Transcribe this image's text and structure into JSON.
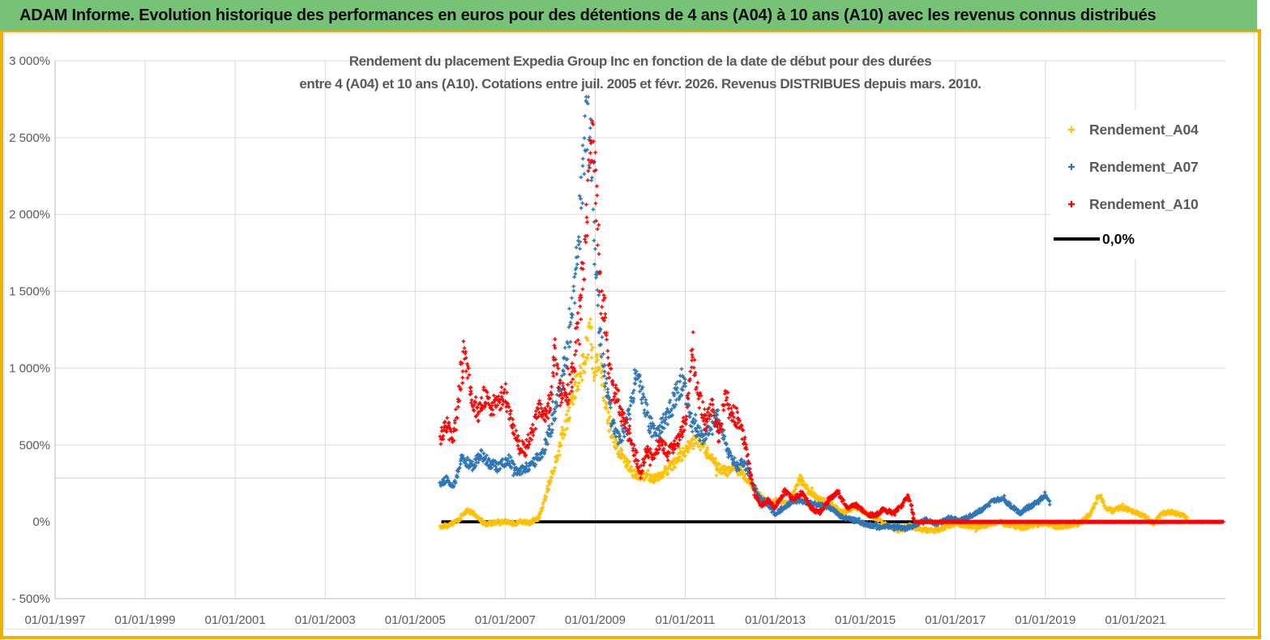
{
  "banner": {
    "title": "ADAM Informe. Evolution historique des performances en euros pour des détentions de 4 ans (A04) à 10 ans (A10) avec les revenus connus distribués",
    "bg_color": "#76C276"
  },
  "colors": {
    "gold_border": "#EFB000",
    "series_a04": "#FFC000",
    "series_a07": "#2E75B6",
    "series_a10": "#FF0000",
    "zero_line": "#000000",
    "gridline": "#DADADA",
    "axis_line": "#C6C6C6",
    "text_gray": "#595959"
  },
  "chart_data": {
    "type": "scatter",
    "title_lines": [
      "Rendement du placement Expedia Group Inc en fonction de la date de début pour des durées",
      "entre 4 (A04) et 10 ans (A10). Cotations entre juil. 2005 et févr. 2026. Revenus DISTRIBUES depuis mars. 2010."
    ],
    "x_axis": {
      "tick_labels": [
        "01/01/1997",
        "01/01/1999",
        "01/01/2001",
        "01/01/2003",
        "01/01/2005",
        "01/01/2007",
        "01/01/2009",
        "01/01/2011",
        "01/01/2013",
        "01/01/2015",
        "01/01/2017",
        "01/01/2019",
        "01/01/2021"
      ],
      "range_years": [
        1997,
        2023
      ],
      "grid_interval_years": 2
    },
    "y_axis": {
      "tick_labels": [
        "3 000%",
        "2 500%",
        "2 000%",
        "1 500%",
        "1 000%",
        "500%",
        "0%",
        "- 500%"
      ],
      "tick_values": [
        3000,
        2500,
        2000,
        1500,
        1000,
        500,
        0,
        -500
      ],
      "min": -500,
      "max": 3000,
      "unit": "%",
      "extra_axis_line_value": 285
    },
    "legend": {
      "position": "right-top-overlapping-plot",
      "items": [
        {
          "label": "Rendement_A04",
          "color": "#FFC000",
          "marker": "plus"
        },
        {
          "label": "Rendement_A07",
          "color": "#2E75B6",
          "marker": "plus"
        },
        {
          "label": "Rendement_A10",
          "color": "#FF0000",
          "marker": "plus"
        },
        {
          "label": "0,0%",
          "color": "#000000",
          "marker": "line"
        }
      ]
    },
    "zero_line": {
      "value": 0,
      "from_year": 2005.58,
      "to_year": 2022.96,
      "color": "#000000"
    },
    "series": [
      {
        "name": "Rendement_A04",
        "color": "#FFC000",
        "anchors": [
          [
            2005.55,
            -30
          ],
          [
            2005.75,
            -25
          ],
          [
            2005.95,
            10
          ],
          [
            2006.15,
            75
          ],
          [
            2006.35,
            45
          ],
          [
            2006.55,
            -15
          ],
          [
            2006.75,
            -5
          ],
          [
            2006.95,
            5
          ],
          [
            2007.15,
            -10
          ],
          [
            2007.35,
            0
          ],
          [
            2007.55,
            -5
          ],
          [
            2007.75,
            25
          ],
          [
            2007.95,
            220
          ],
          [
            2008.15,
            420
          ],
          [
            2008.35,
            640
          ],
          [
            2008.55,
            850
          ],
          [
            2008.75,
            1050
          ],
          [
            2008.9,
            1230
          ],
          [
            2009.0,
            950
          ],
          [
            2009.1,
            1080
          ],
          [
            2009.25,
            720
          ],
          [
            2009.4,
            540
          ],
          [
            2009.55,
            450
          ],
          [
            2009.7,
            390
          ],
          [
            2009.85,
            310
          ],
          [
            2010.0,
            300
          ],
          [
            2010.3,
            280
          ],
          [
            2010.6,
            330
          ],
          [
            2010.9,
            430
          ],
          [
            2011.1,
            500
          ],
          [
            2011.3,
            530
          ],
          [
            2011.5,
            440
          ],
          [
            2011.7,
            370
          ],
          [
            2011.9,
            320
          ],
          [
            2012.1,
            360
          ],
          [
            2012.3,
            300
          ],
          [
            2012.5,
            230
          ],
          [
            2012.7,
            160
          ],
          [
            2012.9,
            120
          ],
          [
            2013.1,
            140
          ],
          [
            2013.3,
            120
          ],
          [
            2013.55,
            280
          ],
          [
            2013.75,
            200
          ],
          [
            2013.95,
            150
          ],
          [
            2014.25,
            115
          ],
          [
            2014.5,
            60
          ],
          [
            2014.75,
            95
          ],
          [
            2015.0,
            60
          ],
          [
            2015.25,
            20
          ],
          [
            2015.5,
            -30
          ],
          [
            2015.75,
            -55
          ],
          [
            2016.0,
            -25
          ],
          [
            2016.25,
            -50
          ],
          [
            2016.5,
            -60
          ],
          [
            2016.75,
            -40
          ],
          [
            2017.0,
            -10
          ],
          [
            2017.25,
            -25
          ],
          [
            2017.5,
            -35
          ],
          [
            2017.75,
            -15
          ],
          [
            2018.0,
            -5
          ],
          [
            2018.25,
            -25
          ],
          [
            2018.5,
            -40
          ],
          [
            2018.75,
            -20
          ],
          [
            2019.0,
            -10
          ],
          [
            2019.25,
            -30
          ],
          [
            2019.5,
            -25
          ],
          [
            2019.75,
            -15
          ],
          [
            2020.0,
            50
          ],
          [
            2020.2,
            180
          ],
          [
            2020.35,
            90
          ],
          [
            2020.5,
            70
          ],
          [
            2020.65,
            95
          ],
          [
            2020.8,
            85
          ],
          [
            2021.0,
            60
          ],
          [
            2021.2,
            35
          ],
          [
            2021.4,
            -10
          ],
          [
            2021.6,
            55
          ],
          [
            2021.8,
            65
          ],
          [
            2022.0,
            45
          ],
          [
            2022.15,
            30
          ]
        ]
      },
      {
        "name": "Rendement_A07",
        "color": "#2E75B6",
        "anchors": [
          [
            2005.55,
            250
          ],
          [
            2005.7,
            280
          ],
          [
            2005.85,
            230
          ],
          [
            2006.05,
            420
          ],
          [
            2006.25,
            360
          ],
          [
            2006.45,
            440
          ],
          [
            2006.65,
            380
          ],
          [
            2006.85,
            355
          ],
          [
            2007.05,
            410
          ],
          [
            2007.25,
            330
          ],
          [
            2007.45,
            350
          ],
          [
            2007.65,
            390
          ],
          [
            2007.85,
            470
          ],
          [
            2008.05,
            650
          ],
          [
            2008.25,
            900
          ],
          [
            2008.45,
            1250
          ],
          [
            2008.65,
            1900
          ],
          [
            2008.8,
            2750
          ],
          [
            2008.9,
            2400
          ],
          [
            2009.0,
            1700
          ],
          [
            2009.1,
            1250
          ],
          [
            2009.25,
            860
          ],
          [
            2009.4,
            620
          ],
          [
            2009.55,
            540
          ],
          [
            2009.7,
            640
          ],
          [
            2009.9,
            960
          ],
          [
            2010.05,
            830
          ],
          [
            2010.2,
            640
          ],
          [
            2010.35,
            560
          ],
          [
            2010.5,
            640
          ],
          [
            2010.65,
            720
          ],
          [
            2010.8,
            830
          ],
          [
            2010.95,
            930
          ],
          [
            2011.1,
            680
          ],
          [
            2011.25,
            590
          ],
          [
            2011.4,
            540
          ],
          [
            2011.55,
            620
          ],
          [
            2011.7,
            700
          ],
          [
            2011.85,
            560
          ],
          [
            2012.0,
            420
          ],
          [
            2012.15,
            360
          ],
          [
            2012.3,
            390
          ],
          [
            2012.45,
            290
          ],
          [
            2012.6,
            180
          ],
          [
            2012.8,
            120
          ],
          [
            2013.0,
            50
          ],
          [
            2013.2,
            90
          ],
          [
            2013.4,
            140
          ],
          [
            2013.6,
            135
          ],
          [
            2013.8,
            120
          ],
          [
            2014.0,
            110
          ],
          [
            2014.2,
            95
          ],
          [
            2014.5,
            30
          ],
          [
            2014.75,
            10
          ],
          [
            2015.0,
            -15
          ],
          [
            2015.3,
            -35
          ],
          [
            2015.6,
            -25
          ],
          [
            2015.9,
            -45
          ],
          [
            2016.1,
            -20
          ],
          [
            2016.35,
            15
          ],
          [
            2016.6,
            -15
          ],
          [
            2016.85,
            25
          ],
          [
            2017.1,
            5
          ],
          [
            2017.35,
            40
          ],
          [
            2017.6,
            80
          ],
          [
            2017.85,
            140
          ],
          [
            2018.05,
            150
          ],
          [
            2018.25,
            100
          ],
          [
            2018.45,
            60
          ],
          [
            2018.65,
            100
          ],
          [
            2018.85,
            130
          ],
          [
            2019.0,
            180
          ],
          [
            2019.1,
            110
          ]
        ]
      },
      {
        "name": "Rendement_A10",
        "color": "#FF0000",
        "flat_zero_tail": {
          "from_year": 2016.1,
          "to_year": 2022.96
        },
        "anchors": [
          [
            2005.55,
            550
          ],
          [
            2005.7,
            630
          ],
          [
            2005.85,
            520
          ],
          [
            2006.0,
            900
          ],
          [
            2006.1,
            1130
          ],
          [
            2006.25,
            820
          ],
          [
            2006.4,
            700
          ],
          [
            2006.55,
            830
          ],
          [
            2006.7,
            740
          ],
          [
            2006.85,
            790
          ],
          [
            2007.0,
            830
          ],
          [
            2007.15,
            640
          ],
          [
            2007.3,
            500
          ],
          [
            2007.45,
            470
          ],
          [
            2007.6,
            590
          ],
          [
            2007.75,
            740
          ],
          [
            2007.9,
            690
          ],
          [
            2008.0,
            800
          ],
          [
            2008.1,
            1150
          ],
          [
            2008.2,
            880
          ],
          [
            2008.35,
            790
          ],
          [
            2008.5,
            960
          ],
          [
            2008.65,
            1350
          ],
          [
            2008.8,
            1850
          ],
          [
            2008.92,
            2530
          ],
          [
            2009.02,
            2150
          ],
          [
            2009.12,
            1500
          ],
          [
            2009.22,
            1320
          ],
          [
            2009.32,
            950
          ],
          [
            2009.45,
            840
          ],
          [
            2009.6,
            700
          ],
          [
            2009.75,
            560
          ],
          [
            2009.9,
            430
          ],
          [
            2010.0,
            310
          ],
          [
            2010.15,
            470
          ],
          [
            2010.3,
            420
          ],
          [
            2010.45,
            520
          ],
          [
            2010.6,
            450
          ],
          [
            2010.75,
            490
          ],
          [
            2010.9,
            560
          ],
          [
            2011.0,
            650
          ],
          [
            2011.15,
            1100
          ],
          [
            2011.3,
            820
          ],
          [
            2011.45,
            650
          ],
          [
            2011.6,
            750
          ],
          [
            2011.75,
            550
          ],
          [
            2011.9,
            860
          ],
          [
            2012.05,
            700
          ],
          [
            2012.2,
            650
          ],
          [
            2012.35,
            470
          ],
          [
            2012.45,
            300
          ],
          [
            2012.55,
            175
          ],
          [
            2012.7,
            110
          ],
          [
            2012.85,
            140
          ],
          [
            2013.0,
            90
          ],
          [
            2013.2,
            200
          ],
          [
            2013.4,
            150
          ],
          [
            2013.6,
            190
          ],
          [
            2013.8,
            85
          ],
          [
            2014.0,
            60
          ],
          [
            2014.2,
            150
          ],
          [
            2014.4,
            190
          ],
          [
            2014.6,
            90
          ],
          [
            2014.8,
            110
          ],
          [
            2015.0,
            55
          ],
          [
            2015.2,
            40
          ],
          [
            2015.4,
            80
          ],
          [
            2015.6,
            60
          ],
          [
            2015.8,
            100
          ],
          [
            2015.95,
            170
          ],
          [
            2016.05,
            60
          ],
          [
            2016.1,
            0
          ],
          [
            2022.95,
            0
          ]
        ]
      }
    ]
  }
}
